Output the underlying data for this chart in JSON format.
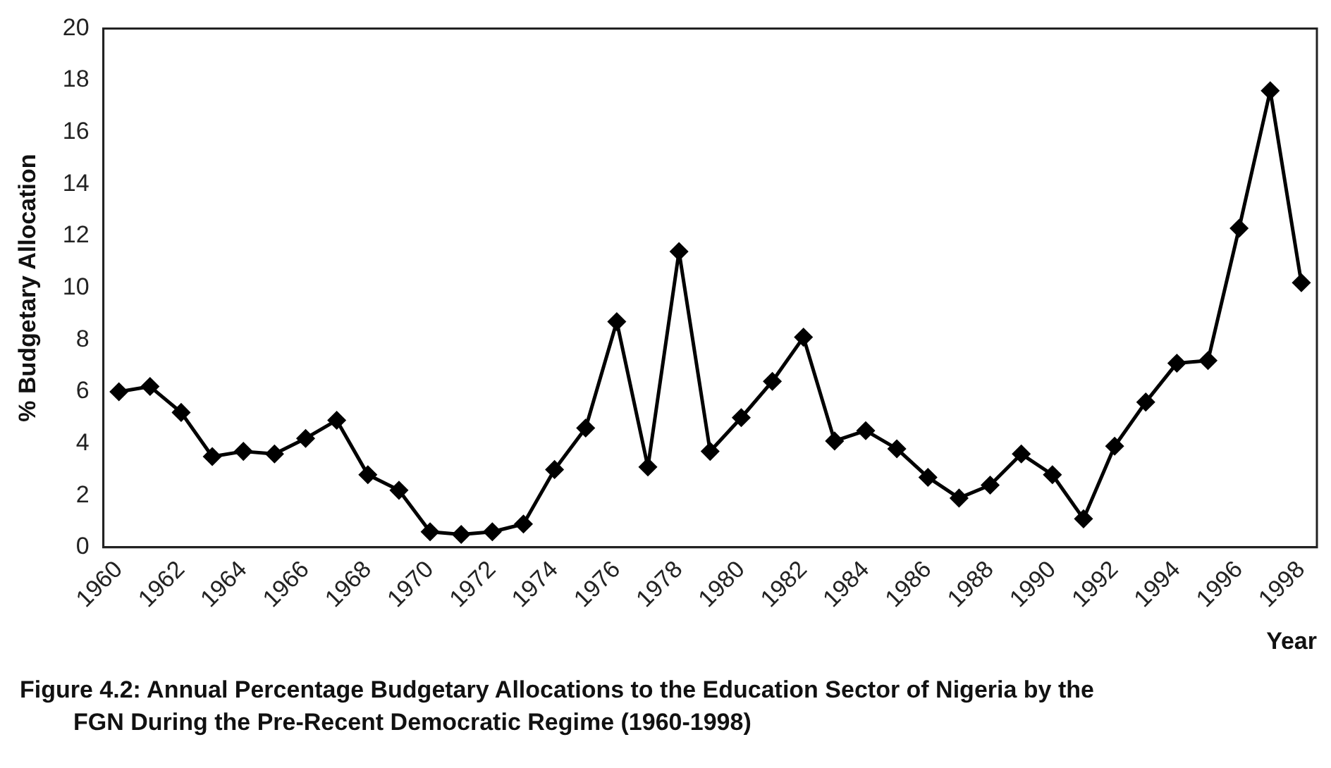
{
  "chart_data": {
    "type": "line",
    "xlabel": "Year",
    "ylabel": "% Budgetary Allocation",
    "categories": [
      "1960",
      null,
      "1962",
      null,
      "1964",
      null,
      "1966",
      null,
      "1968",
      null,
      "1970",
      null,
      "1972",
      null,
      "1974",
      null,
      "1976",
      null,
      "1978",
      null,
      "1980",
      null,
      "1982",
      null,
      "1984",
      null,
      "1986",
      null,
      "1988",
      null,
      "1990",
      null,
      "1992",
      null,
      "1994",
      null,
      "1996",
      null,
      "1998"
    ],
    "series": [
      {
        "color": "#000000",
        "values": [
          6.0,
          6.2,
          5.2,
          3.5,
          3.7,
          3.6,
          4.2,
          4.9,
          2.8,
          2.2,
          0.6,
          0.5,
          0.6,
          0.9,
          3.0,
          4.6,
          8.7,
          3.1,
          11.4,
          3.7,
          5.0,
          6.4,
          8.1,
          4.1,
          4.5,
          3.8,
          2.7,
          1.9,
          2.4,
          3.6,
          2.8,
          1.1,
          3.9,
          5.6,
          7.1,
          7.2,
          12.3,
          17.6,
          10.2
        ]
      }
    ],
    "ylim": [
      0,
      20
    ],
    "yticks": [
      0,
      2,
      4,
      6,
      8,
      10,
      12,
      14,
      16,
      18,
      20
    ],
    "grid": false,
    "legend": false,
    "marker": "diamond",
    "line_style": "solid",
    "annotations": [
      "Figure 4.2: Annual Percentage Budgetary Allocations to the Education Sector of Nigeria by the FGN During the Pre-Recent Democratic Regime (1960-1998)"
    ]
  }
}
